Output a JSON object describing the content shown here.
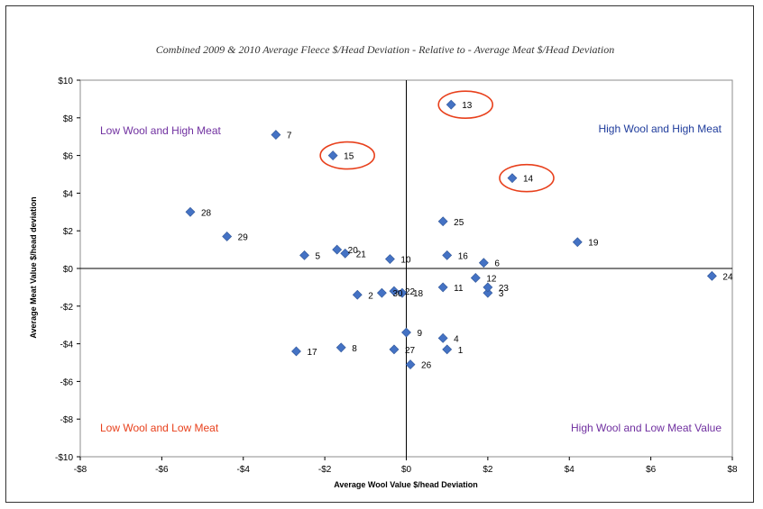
{
  "chart_data": {
    "type": "scatter",
    "title": "Combined 2009 & 2010 Average Fleece $/Head Deviation - Relative to - Average Meat $/Head Deviation",
    "xlabel": "Average Wool Value $/head Deviation",
    "ylabel": "Average Meat Value $/head deviation",
    "xlim": [
      -8,
      8
    ],
    "ylim": [
      -10,
      10
    ],
    "x_ticks": [
      "-$8",
      "-$6",
      "-$4",
      "-$2",
      "$0",
      "$2",
      "$4",
      "$6",
      "$8"
    ],
    "y_ticks": [
      "$10",
      "$8",
      "$6",
      "$4",
      "$2",
      "$0",
      "-$2",
      "-$4",
      "-$6",
      "-$8",
      "-$10"
    ],
    "grid": false,
    "marker_color": "#4472c4",
    "highlight_color": "#e8401c",
    "points": [
      {
        "label": "1",
        "x": 1.0,
        "y": -4.3
      },
      {
        "label": "2",
        "x": -1.2,
        "y": -1.4
      },
      {
        "label": "3",
        "x": 2.0,
        "y": -1.3
      },
      {
        "label": "4",
        "x": 0.9,
        "y": -3.7
      },
      {
        "label": "5",
        "x": -2.5,
        "y": 0.7
      },
      {
        "label": "6",
        "x": 1.9,
        "y": 0.3
      },
      {
        "label": "7",
        "x": -3.2,
        "y": 7.1
      },
      {
        "label": "8",
        "x": -1.6,
        "y": -4.2
      },
      {
        "label": "9",
        "x": 0.0,
        "y": -3.4
      },
      {
        "label": "10",
        "x": -0.4,
        "y": 0.5
      },
      {
        "label": "11",
        "x": 0.9,
        "y": -1.0
      },
      {
        "label": "12",
        "x": 1.7,
        "y": -0.5
      },
      {
        "label": "13",
        "x": 1.1,
        "y": 8.7
      },
      {
        "label": "14",
        "x": 2.6,
        "y": 4.8
      },
      {
        "label": "15",
        "x": -1.8,
        "y": 6.0
      },
      {
        "label": "16",
        "x": 1.0,
        "y": 0.7
      },
      {
        "label": "17",
        "x": -2.7,
        "y": -4.4
      },
      {
        "label": "18",
        "x": -0.1,
        "y": -1.3
      },
      {
        "label": "19",
        "x": 4.2,
        "y": 1.4
      },
      {
        "label": "20",
        "x": -1.7,
        "y": 1.0
      },
      {
        "label": "21",
        "x": -1.5,
        "y": 0.8
      },
      {
        "label": "22",
        "x": -0.3,
        "y": -1.2
      },
      {
        "label": "23",
        "x": 2.0,
        "y": -1.0
      },
      {
        "label": "24",
        "x": 7.5,
        "y": -0.4
      },
      {
        "label": "25",
        "x": 0.9,
        "y": 2.5
      },
      {
        "label": "26",
        "x": 0.1,
        "y": -5.1
      },
      {
        "label": "27",
        "x": -0.3,
        "y": -4.3
      },
      {
        "label": "28",
        "x": -5.3,
        "y": 3.0
      },
      {
        "label": "29",
        "x": -4.4,
        "y": 1.7
      },
      {
        "label": "30",
        "x": -0.6,
        "y": -1.3
      }
    ],
    "highlighted": [
      "13",
      "14",
      "15"
    ],
    "quadrant_labels": [
      {
        "text": "Low Wool and High Meat",
        "position": "top-left",
        "color": "#7030a0"
      },
      {
        "text": "High Wool and High Meat",
        "position": "top-right",
        "color": "#1f3c9c"
      },
      {
        "text": "Low Wool and Low Meat",
        "position": "bottom-left",
        "color": "#e8401c"
      },
      {
        "text": "High Wool and Low Meat Value",
        "position": "bottom-right",
        "color": "#7030a0"
      }
    ]
  }
}
